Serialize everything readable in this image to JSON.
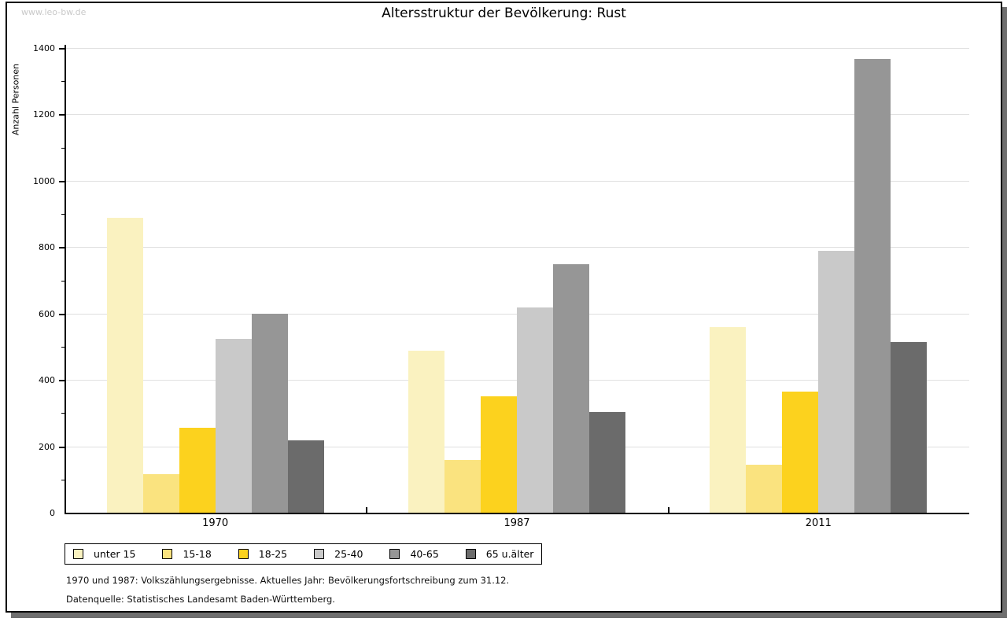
{
  "watermark": "www.leo-bw.de",
  "title": "Altersstruktur der Bevölkerung: Rust",
  "chart_data": {
    "type": "bar",
    "title": "Altersstruktur der Bevölkerung: Rust",
    "xlabel": "",
    "ylabel": "Anzahl Personen",
    "categories": [
      "1970",
      "1987",
      "2011"
    ],
    "series": [
      {
        "name": "unter 15",
        "color": "#faf2c0",
        "values": [
          888,
          487,
          560
        ]
      },
      {
        "name": "15-18",
        "color": "#fae37f",
        "values": [
          115,
          158,
          145
        ]
      },
      {
        "name": "18-25",
        "color": "#fcd21e",
        "values": [
          257,
          350,
          365
        ]
      },
      {
        "name": "25-40",
        "color": "#c9c9c9",
        "values": [
          523,
          618,
          790
        ]
      },
      {
        "name": "40-65",
        "color": "#969696",
        "values": [
          600,
          748,
          1368
        ]
      },
      {
        "name": "65 u.älter",
        "color": "#6b6b6b",
        "values": [
          218,
          303,
          513
        ]
      }
    ],
    "ylim": [
      0,
      1400
    ],
    "ytick_step": 200,
    "yminortick_step": 100,
    "grid": true,
    "legend_position": "bottom-left"
  },
  "footnotes": {
    "line1": "1970 und 1987: Volkszählungsergebnisse. Aktuelles Jahr: Bevölkerungsfortschreibung zum 31.12.",
    "line2": "Datenquelle: Statistisches Landesamt Baden-Württemberg."
  }
}
